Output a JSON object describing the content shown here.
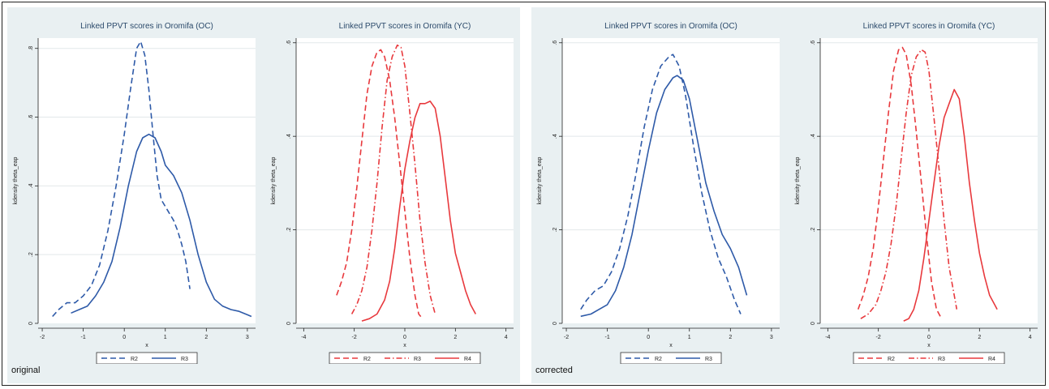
{
  "groups": [
    {
      "caption": "original"
    },
    {
      "caption": "corrected"
    }
  ],
  "colors": {
    "blue": "#2e5aa8",
    "red": "#e8393d",
    "panel_bg": "#e9f0f2",
    "grid": "#e2e8ea"
  },
  "chart_data": [
    {
      "type": "line",
      "group": "original",
      "title": "Linked PPVT scores in Oromifa (OC)",
      "xlabel": "x",
      "ylabel": "kdensity theta_eap",
      "xlim": [
        -2.1,
        3.2
      ],
      "ylim": [
        0,
        0.83
      ],
      "xticks": [
        -2,
        -1,
        0,
        1,
        2,
        3
      ],
      "xtick_labels": [
        "-2",
        "-1",
        "0",
        "1",
        "2",
        "3"
      ],
      "yticks": [
        0,
        0.2,
        0.4,
        0.6,
        0.8
      ],
      "ytick_labels": [
        "0",
        ".2",
        ".4",
        ".6",
        ".8"
      ],
      "grid": true,
      "legend": "bottom",
      "series": [
        {
          "name": "R2",
          "color": "blue",
          "dash": "dash",
          "x": [
            -1.75,
            -1.6,
            -1.4,
            -1.2,
            -1.0,
            -0.8,
            -0.6,
            -0.4,
            -0.2,
            0.0,
            0.15,
            0.3,
            0.4,
            0.5,
            0.6,
            0.7,
            0.8,
            0.9,
            1.0,
            1.1,
            1.2,
            1.3,
            1.4,
            1.5,
            1.6
          ],
          "y": [
            0.02,
            0.04,
            0.06,
            0.06,
            0.08,
            0.11,
            0.17,
            0.27,
            0.4,
            0.55,
            0.68,
            0.8,
            0.82,
            0.78,
            0.68,
            0.55,
            0.43,
            0.36,
            0.34,
            0.32,
            0.3,
            0.27,
            0.23,
            0.18,
            0.1
          ]
        },
        {
          "name": "R3",
          "color": "blue",
          "dash": "solid",
          "x": [
            -1.3,
            -1.1,
            -0.9,
            -0.7,
            -0.5,
            -0.3,
            -0.1,
            0.1,
            0.3,
            0.45,
            0.6,
            0.75,
            0.9,
            1.0,
            1.2,
            1.4,
            1.6,
            1.8,
            2.0,
            2.2,
            2.4,
            2.6,
            2.8,
            3.0,
            3.1
          ],
          "y": [
            0.03,
            0.04,
            0.05,
            0.08,
            0.12,
            0.18,
            0.28,
            0.4,
            0.5,
            0.54,
            0.55,
            0.54,
            0.5,
            0.46,
            0.43,
            0.38,
            0.3,
            0.2,
            0.12,
            0.07,
            0.05,
            0.04,
            0.035,
            0.025,
            0.02
          ]
        }
      ]
    },
    {
      "type": "line",
      "group": "original",
      "title": "Linked PPVT scores in Oromifa (YC)",
      "xlabel": "x",
      "ylabel": "kdensity theta_eap",
      "xlim": [
        -4.3,
        4.3
      ],
      "ylim": [
        0,
        0.61
      ],
      "xticks": [
        -4,
        -2,
        0,
        2,
        4
      ],
      "xtick_labels": [
        "-4",
        "-2",
        "0",
        "2",
        "4"
      ],
      "yticks": [
        0,
        0.2,
        0.4,
        0.6
      ],
      "ytick_labels": [
        "0",
        ".2",
        ".4",
        ".6"
      ],
      "grid": true,
      "legend": "bottom",
      "series": [
        {
          "name": "R2",
          "color": "red",
          "dash": "dash",
          "x": [
            -2.7,
            -2.5,
            -2.3,
            -2.1,
            -1.9,
            -1.7,
            -1.5,
            -1.3,
            -1.1,
            -0.95,
            -0.8,
            -0.6,
            -0.4,
            -0.2,
            0.0,
            0.2,
            0.4,
            0.55,
            0.7
          ],
          "y": [
            0.06,
            0.09,
            0.13,
            0.2,
            0.29,
            0.39,
            0.49,
            0.55,
            0.58,
            0.585,
            0.57,
            0.52,
            0.44,
            0.34,
            0.24,
            0.14,
            0.06,
            0.02,
            0.01
          ]
        },
        {
          "name": "R3",
          "color": "red",
          "dash": "dashdot",
          "x": [
            -2.1,
            -1.9,
            -1.7,
            -1.5,
            -1.3,
            -1.1,
            -0.9,
            -0.7,
            -0.5,
            -0.3,
            -0.15,
            0.0,
            0.2,
            0.4,
            0.6,
            0.8,
            1.0,
            1.2
          ],
          "y": [
            0.02,
            0.04,
            0.07,
            0.12,
            0.2,
            0.3,
            0.42,
            0.52,
            0.57,
            0.595,
            0.59,
            0.55,
            0.45,
            0.34,
            0.22,
            0.13,
            0.06,
            0.02
          ]
        },
        {
          "name": "R4",
          "color": "red",
          "dash": "solid",
          "x": [
            -1.7,
            -1.4,
            -1.1,
            -0.8,
            -0.6,
            -0.4,
            -0.2,
            0.0,
            0.2,
            0.4,
            0.6,
            0.8,
            1.0,
            1.2,
            1.4,
            1.6,
            1.8,
            2.0,
            2.2,
            2.4,
            2.6,
            2.8
          ],
          "y": [
            0.005,
            0.01,
            0.02,
            0.05,
            0.09,
            0.16,
            0.25,
            0.33,
            0.39,
            0.44,
            0.47,
            0.47,
            0.475,
            0.46,
            0.4,
            0.31,
            0.22,
            0.15,
            0.11,
            0.07,
            0.04,
            0.02
          ]
        }
      ]
    },
    {
      "type": "line",
      "group": "corrected",
      "title": "Linked PPVT scores in Oromifa (OC)",
      "xlabel": "x",
      "ylabel": "kdensity theta_eap",
      "xlim": [
        -2.1,
        3.2
      ],
      "ylim": [
        0,
        0.61
      ],
      "xticks": [
        -2,
        -1,
        0,
        1,
        2,
        3
      ],
      "xtick_labels": [
        "-2",
        "-1",
        "0",
        "1",
        "2",
        "3"
      ],
      "yticks": [
        0,
        0.2,
        0.4,
        0.6
      ],
      "ytick_labels": [
        "0",
        ".2",
        ".4",
        ".6"
      ],
      "grid": true,
      "legend": "bottom",
      "series": [
        {
          "name": "R2",
          "color": "blue",
          "dash": "dash",
          "x": [
            -1.65,
            -1.5,
            -1.3,
            -1.1,
            -0.9,
            -0.7,
            -0.5,
            -0.3,
            -0.1,
            0.1,
            0.3,
            0.5,
            0.6,
            0.75,
            0.9,
            1.1,
            1.3,
            1.5,
            1.7,
            1.9,
            2.1,
            2.25
          ],
          "y": [
            0.03,
            0.05,
            0.07,
            0.08,
            0.11,
            0.16,
            0.23,
            0.32,
            0.42,
            0.5,
            0.55,
            0.57,
            0.575,
            0.55,
            0.49,
            0.38,
            0.28,
            0.2,
            0.14,
            0.1,
            0.05,
            0.02
          ]
        },
        {
          "name": "R3",
          "color": "blue",
          "dash": "solid",
          "x": [
            -1.65,
            -1.4,
            -1.2,
            -1.0,
            -0.8,
            -0.6,
            -0.4,
            -0.2,
            0.0,
            0.2,
            0.4,
            0.6,
            0.7,
            0.85,
            1.0,
            1.2,
            1.4,
            1.6,
            1.8,
            2.0,
            2.2,
            2.4
          ],
          "y": [
            0.015,
            0.02,
            0.03,
            0.04,
            0.07,
            0.12,
            0.19,
            0.28,
            0.37,
            0.45,
            0.5,
            0.525,
            0.53,
            0.52,
            0.48,
            0.39,
            0.3,
            0.24,
            0.19,
            0.16,
            0.12,
            0.06
          ]
        }
      ]
    },
    {
      "type": "line",
      "group": "corrected",
      "title": "Linked PPVT scores in Oromifa (YC)",
      "xlabel": "x",
      "ylabel": "kdensity theta_eap",
      "xlim": [
        -4.3,
        4.3
      ],
      "ylim": [
        0,
        0.61
      ],
      "xticks": [
        -4,
        -2,
        0,
        2,
        4
      ],
      "xtick_labels": [
        "-4",
        "-2",
        "0",
        "2",
        "4"
      ],
      "yticks": [
        0,
        0.2,
        0.4,
        0.6
      ],
      "ytick_labels": [
        "0",
        ".2",
        ".4",
        ".6"
      ],
      "grid": true,
      "legend": "bottom",
      "series": [
        {
          "name": "R2",
          "color": "red",
          "dash": "dash",
          "x": [
            -2.8,
            -2.6,
            -2.4,
            -2.2,
            -2.0,
            -1.8,
            -1.6,
            -1.4,
            -1.2,
            -1.05,
            -0.9,
            -0.7,
            -0.5,
            -0.3,
            -0.1,
            0.1,
            0.3,
            0.5
          ],
          "y": [
            0.03,
            0.06,
            0.1,
            0.16,
            0.25,
            0.35,
            0.45,
            0.54,
            0.585,
            0.59,
            0.575,
            0.51,
            0.41,
            0.3,
            0.19,
            0.09,
            0.03,
            0.01
          ]
        },
        {
          "name": "R3",
          "color": "red",
          "dash": "dashdot",
          "x": [
            -2.7,
            -2.4,
            -2.1,
            -1.9,
            -1.7,
            -1.5,
            -1.3,
            -1.1,
            -0.9,
            -0.7,
            -0.5,
            -0.3,
            -0.15,
            0.0,
            0.2,
            0.4,
            0.6,
            0.8,
            1.0,
            1.1
          ],
          "y": [
            0.01,
            0.02,
            0.04,
            0.07,
            0.11,
            0.17,
            0.25,
            0.35,
            0.45,
            0.53,
            0.57,
            0.585,
            0.58,
            0.54,
            0.44,
            0.33,
            0.22,
            0.12,
            0.06,
            0.03
          ]
        },
        {
          "name": "R4",
          "color": "red",
          "dash": "solid",
          "x": [
            -1.0,
            -0.8,
            -0.6,
            -0.4,
            -0.2,
            0.0,
            0.2,
            0.4,
            0.6,
            0.8,
            1.0,
            1.2,
            1.4,
            1.6,
            1.8,
            2.0,
            2.2,
            2.4,
            2.6,
            2.7
          ],
          "y": [
            0.005,
            0.01,
            0.03,
            0.07,
            0.14,
            0.22,
            0.3,
            0.38,
            0.44,
            0.47,
            0.5,
            0.48,
            0.4,
            0.3,
            0.22,
            0.15,
            0.1,
            0.06,
            0.04,
            0.03
          ]
        }
      ]
    }
  ]
}
